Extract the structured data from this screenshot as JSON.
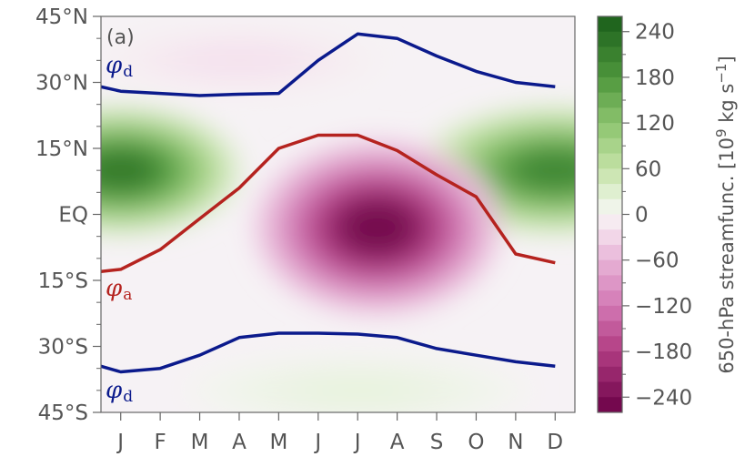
{
  "chart_data": {
    "type": "heatmap",
    "panel_label": "(a)",
    "x_ticks": [
      "J",
      "F",
      "M",
      "A",
      "M",
      "J",
      "J",
      "A",
      "S",
      "O",
      "N",
      "D"
    ],
    "y_ticks": [
      "45°N",
      "30°N",
      "15°N",
      "EQ",
      "15°S",
      "30°S",
      "45°S"
    ],
    "y_tick_values": [
      45,
      30,
      15,
      0,
      -15,
      -30,
      -45
    ],
    "ylim": [
      -45,
      45
    ],
    "colorbar": {
      "label": "650-hPa streamfunc. [10",
      "label_exp": "9",
      "label_units": " kg s",
      "label_exp2": "−1",
      "label_end": "]",
      "ticks": [
        "240",
        "180",
        "120",
        "60",
        "0",
        "−60",
        "−120",
        "−180",
        "−240"
      ],
      "tick_values": [
        240,
        180,
        120,
        60,
        0,
        -60,
        -120,
        -180,
        -240
      ],
      "range": [
        -260,
        260
      ],
      "positive_color": "#1a5e1a",
      "negative_color": "#6b0046"
    },
    "series": [
      {
        "name": "φ",
        "subscript": "d",
        "color": "#0b1a8c",
        "values": [
          29,
          28,
          27.5,
          27,
          27.3,
          27.5,
          35,
          41,
          40,
          36,
          32.5,
          30,
          29
        ]
      },
      {
        "name": "φ",
        "subscript": "a",
        "color": "#b5231f",
        "values": [
          -13,
          -12.5,
          -8,
          -1,
          6,
          15,
          18,
          18,
          14.5,
          9,
          4,
          -9,
          -11
        ]
      },
      {
        "name": "φ",
        "subscript": "d",
        "color": "#0b1a8c",
        "values": [
          -34.5,
          -35.8,
          -35,
          -32,
          -28,
          -27,
          -27,
          -27.2,
          -28,
          -30.5,
          -32,
          -33.5,
          -34.5
        ]
      }
    ],
    "curve_x": [
      0.5,
      1,
      2,
      3,
      4,
      5,
      6,
      7,
      8,
      9,
      10,
      11,
      12
    ],
    "field_features": [
      {
        "lon_month": 1,
        "lat": 10,
        "value": 220
      },
      {
        "lon_month": 12,
        "lat": 10,
        "value": 200
      },
      {
        "lon_month": 7.5,
        "lat": -3,
        "value": -250
      },
      {
        "lon_month": 4,
        "lat": 35,
        "value": -20
      },
      {
        "lon_month": 7,
        "lat": -40,
        "value": 20
      }
    ]
  }
}
